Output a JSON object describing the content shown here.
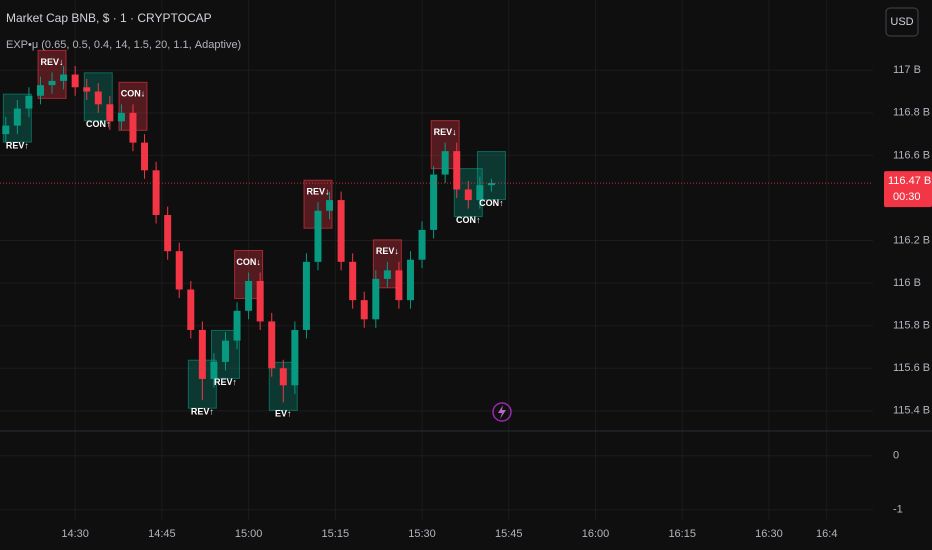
{
  "chart_data": {
    "type": "candlestick",
    "title": "Market Cap BNB, $ · 1 · CRYPTOCAP",
    "indicator": "EXP•μ (0.65, 0.5, 0.4, 14, 1.5, 20, 1.1, Adaptive)",
    "currency": "USD",
    "x": [
      "14:18",
      "14:20",
      "14:22",
      "14:24",
      "14:26",
      "14:28",
      "14:30",
      "14:32",
      "14:34",
      "14:36",
      "14:38",
      "14:40",
      "14:42",
      "14:44",
      "14:46",
      "14:48",
      "14:50",
      "14:52",
      "14:54",
      "14:56",
      "14:58",
      "15:00",
      "15:02",
      "15:04",
      "15:06",
      "15:08",
      "15:10",
      "15:12",
      "15:14",
      "15:16",
      "15:18",
      "15:20",
      "15:22",
      "15:24",
      "15:26",
      "15:28",
      "15:30",
      "15:32",
      "15:34",
      "15:36",
      "15:38",
      "15:40",
      "15:42"
    ],
    "open": [
      116.7,
      116.74,
      116.82,
      116.88,
      116.93,
      116.95,
      116.98,
      116.92,
      116.9,
      116.84,
      116.76,
      116.8,
      116.66,
      116.53,
      116.32,
      116.15,
      115.97,
      115.78,
      115.55,
      115.63,
      115.73,
      115.87,
      116.01,
      115.82,
      115.6,
      115.52,
      115.78,
      116.1,
      116.34,
      116.39,
      116.1,
      115.92,
      115.83,
      116.02,
      116.06,
      115.92,
      116.11,
      116.25,
      116.51,
      116.62,
      116.44,
      116.39,
      116.46
    ],
    "high": [
      116.78,
      116.86,
      116.92,
      116.97,
      116.99,
      117.02,
      117.02,
      116.96,
      116.94,
      116.88,
      116.84,
      116.84,
      116.7,
      116.57,
      116.36,
      116.19,
      116.01,
      115.82,
      115.67,
      115.77,
      115.91,
      116.05,
      116.05,
      115.86,
      115.64,
      115.82,
      116.14,
      116.38,
      116.43,
      116.43,
      116.14,
      115.96,
      116.06,
      116.1,
      116.1,
      116.15,
      116.29,
      116.55,
      116.66,
      116.66,
      116.48,
      116.5,
      116.49
    ],
    "low": [
      116.66,
      116.7,
      116.78,
      116.84,
      116.89,
      116.91,
      116.88,
      116.86,
      116.8,
      116.72,
      116.72,
      116.62,
      116.49,
      116.28,
      116.11,
      115.93,
      115.74,
      115.45,
      115.51,
      115.59,
      115.69,
      115.83,
      115.78,
      115.56,
      115.44,
      115.48,
      115.74,
      116.06,
      116.3,
      116.06,
      115.88,
      115.79,
      115.79,
      115.98,
      115.88,
      115.88,
      116.07,
      116.21,
      116.47,
      116.4,
      116.35,
      116.35,
      116.43
    ],
    "close": [
      116.74,
      116.82,
      116.88,
      116.93,
      116.95,
      116.98,
      116.92,
      116.9,
      116.84,
      116.76,
      116.8,
      116.66,
      116.53,
      116.32,
      116.15,
      115.97,
      115.78,
      115.55,
      115.63,
      115.73,
      115.87,
      116.01,
      115.82,
      115.6,
      115.52,
      115.78,
      116.1,
      116.34,
      116.39,
      116.1,
      115.92,
      115.83,
      116.02,
      116.06,
      115.92,
      116.11,
      116.25,
      116.51,
      116.62,
      116.44,
      116.39,
      116.46,
      116.47
    ],
    "up_color": "#089981",
    "down_color": "#f23645",
    "xlim": [
      "14:17",
      "16:48"
    ],
    "xticks": [
      "14:30",
      "14:45",
      "15:00",
      "15:15",
      "15:30",
      "15:45",
      "16:00",
      "16:15",
      "16:30",
      "16:4"
    ],
    "ylim": [
      115.31,
      117.33
    ],
    "yticks": [
      {
        "value": 117,
        "label": "117 B"
      },
      {
        "value": 116.8,
        "label": "116.8 B"
      },
      {
        "value": 116.6,
        "label": "116.6 B"
      },
      {
        "value": 116.2,
        "label": "116.2 B"
      },
      {
        "value": 116,
        "label": "116 B"
      },
      {
        "value": 115.8,
        "label": "115.8 B"
      },
      {
        "value": 115.6,
        "label": "115.6 B"
      },
      {
        "value": 115.4,
        "label": "115.4 B"
      }
    ],
    "last_price": {
      "value": 116.47,
      "label": "116.47 B"
    },
    "countdown": "00:30",
    "grid": true,
    "annotations": [
      {
        "text": "REV↓",
        "x": "14:26",
        "color": "#f23645",
        "side": "above"
      },
      {
        "text": "REV↑",
        "x": "14:20",
        "color": "#089981",
        "side": "below"
      },
      {
        "text": "CON↓",
        "x": "14:40",
        "color": "#f23645",
        "side": "above"
      },
      {
        "text": "CON↑",
        "x": "14:34",
        "color": "#089981",
        "side": "below"
      },
      {
        "text": "REV↑",
        "x": "14:52",
        "color": "#089981",
        "side": "below"
      },
      {
        "text": "REV↑",
        "x": "14:56",
        "color": "#089981",
        "side": "below"
      },
      {
        "text": "CON↓",
        "x": "15:00",
        "color": "#f23645",
        "side": "above"
      },
      {
        "text": "EV↑",
        "x": "15:06",
        "color": "#089981",
        "side": "below"
      },
      {
        "text": "REV↓",
        "x": "15:12",
        "color": "#f23645",
        "side": "above"
      },
      {
        "text": "REV↓",
        "x": "15:24",
        "color": "#f23645",
        "side": "above"
      },
      {
        "text": "REV↓",
        "x": "15:34",
        "color": "#f23645",
        "side": "above"
      },
      {
        "text": "CON↑",
        "x": "15:38",
        "color": "#089981",
        "side": "below"
      },
      {
        "text": "CON↑",
        "x": "15:42",
        "color": "#089981",
        "side": "below"
      }
    ],
    "indicator_pane": {
      "ylim": [
        -1.19,
        0.44
      ],
      "yticks": [
        0,
        -1
      ]
    }
  }
}
